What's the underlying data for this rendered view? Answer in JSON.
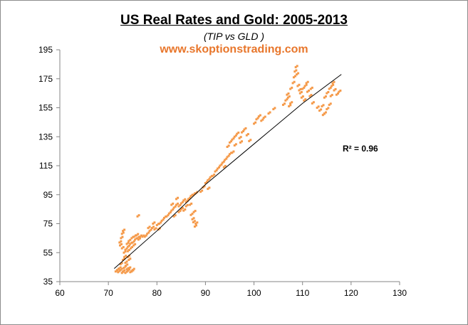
{
  "chart_data": {
    "type": "scatter",
    "title": "US Real Rates and Gold: 2005-2013",
    "subtitle": "(TIP vs GLD )",
    "watermark": "www.skoptionstrading.com",
    "xlabel": "",
    "ylabel": "",
    "xlim": [
      60,
      130
    ],
    "ylim": [
      35,
      195
    ],
    "xticks": [
      "60",
      "70",
      "80",
      "90",
      "100",
      "110",
      "120",
      "130"
    ],
    "yticks": [
      "35",
      "55",
      "75",
      "95",
      "115",
      "135",
      "155",
      "175",
      "195"
    ],
    "grid": false,
    "marker_color": "#f59a4a",
    "trendline": {
      "label": "R² = 0.96",
      "points": [
        [
          71.2,
          44
        ],
        [
          80,
          70
        ],
        [
          90,
          102
        ],
        [
          100,
          130
        ],
        [
          110,
          158
        ],
        [
          118,
          178
        ]
      ]
    },
    "points": [
      [
        71.5,
        42
      ],
      [
        72,
        41.5
      ],
      [
        72.5,
        43
      ],
      [
        73,
        42
      ],
      [
        73.5,
        41
      ],
      [
        74,
        42.5
      ],
      [
        74.5,
        41.5
      ],
      [
        75,
        43
      ],
      [
        72.2,
        44
      ],
      [
        73.2,
        44.5
      ],
      [
        74.2,
        44
      ],
      [
        71.8,
        43
      ],
      [
        72.8,
        41
      ],
      [
        73.8,
        43.5
      ],
      [
        74.8,
        42
      ],
      [
        72.5,
        47
      ],
      [
        73,
        50
      ],
      [
        73.5,
        48
      ],
      [
        74,
        52
      ],
      [
        73.2,
        55
      ],
      [
        72.8,
        58
      ],
      [
        72.3,
        62
      ],
      [
        72.6,
        65
      ],
      [
        72.8,
        68
      ],
      [
        73,
        70
      ],
      [
        72.4,
        60
      ],
      [
        73.3,
        52
      ],
      [
        74.2,
        50
      ],
      [
        73.6,
        46
      ],
      [
        73.5,
        57
      ],
      [
        74,
        59
      ],
      [
        74.5,
        61
      ],
      [
        75,
        62
      ],
      [
        75.5,
        64
      ],
      [
        76,
        65
      ],
      [
        76.5,
        66
      ],
      [
        77,
        66
      ],
      [
        74.2,
        63
      ],
      [
        74.8,
        65
      ],
      [
        75.3,
        66
      ],
      [
        75.8,
        67
      ],
      [
        76.2,
        64
      ],
      [
        74,
        56
      ],
      [
        74.6,
        58
      ],
      [
        75.2,
        60
      ],
      [
        73.8,
        61
      ],
      [
        77.5,
        66
      ],
      [
        78,
        68
      ],
      [
        78.5,
        70
      ],
      [
        79,
        72
      ],
      [
        79.5,
        71
      ],
      [
        80,
        74
      ],
      [
        80.5,
        75
      ],
      [
        81,
        77
      ],
      [
        79.2,
        75
      ],
      [
        78.2,
        72
      ],
      [
        80.3,
        71
      ],
      [
        81.5,
        79
      ],
      [
        82,
        80
      ],
      [
        76,
        80
      ],
      [
        82.5,
        82
      ],
      [
        83,
        84
      ],
      [
        83.5,
        86
      ],
      [
        84,
        88
      ],
      [
        84.5,
        87
      ],
      [
        85,
        89
      ],
      [
        85.5,
        91
      ],
      [
        86,
        90
      ],
      [
        86.5,
        92
      ],
      [
        87,
        94
      ],
      [
        87.5,
        95
      ],
      [
        88,
        96
      ],
      [
        83,
        88
      ],
      [
        84,
        92
      ],
      [
        85,
        85
      ],
      [
        86,
        87
      ],
      [
        85.5,
        84
      ],
      [
        84.5,
        83
      ],
      [
        86.8,
        88
      ],
      [
        83.5,
        80
      ],
      [
        87,
        81
      ],
      [
        87.3,
        78
      ],
      [
        87.5,
        76
      ],
      [
        87.8,
        73
      ],
      [
        88,
        75
      ],
      [
        87.6,
        83
      ],
      [
        89,
        97
      ],
      [
        89.5,
        100
      ],
      [
        90,
        103
      ],
      [
        90.5,
        105
      ],
      [
        91,
        107
      ],
      [
        91.5,
        108
      ],
      [
        92,
        111
      ],
      [
        90.5,
        99
      ],
      [
        92.5,
        113
      ],
      [
        93,
        115
      ],
      [
        93.5,
        117
      ],
      [
        94,
        119
      ],
      [
        94.5,
        121
      ],
      [
        95,
        123
      ],
      [
        95.5,
        124
      ],
      [
        93.8,
        114
      ],
      [
        94.5,
        128
      ],
      [
        95,
        131
      ],
      [
        95.5,
        133
      ],
      [
        96,
        135
      ],
      [
        96.5,
        137
      ],
      [
        97,
        134
      ],
      [
        97.5,
        138
      ],
      [
        98,
        140
      ],
      [
        98.5,
        136
      ],
      [
        99,
        132
      ],
      [
        96,
        129
      ],
      [
        97.2,
        131
      ],
      [
        100,
        144
      ],
      [
        100.5,
        147
      ],
      [
        101,
        149
      ],
      [
        101.5,
        146
      ],
      [
        102,
        148
      ],
      [
        103,
        151
      ],
      [
        104,
        154
      ],
      [
        106,
        157
      ],
      [
        106.5,
        160
      ],
      [
        107,
        162
      ],
      [
        107.5,
        158
      ],
      [
        106.8,
        164
      ],
      [
        107.2,
        156
      ],
      [
        107.5,
        168
      ],
      [
        108,
        172
      ],
      [
        108.2,
        176
      ],
      [
        108.4,
        180
      ],
      [
        108.6,
        183
      ],
      [
        108.8,
        178
      ],
      [
        109,
        170
      ],
      [
        109.3,
        167
      ],
      [
        109.5,
        165
      ],
      [
        110,
        168
      ],
      [
        110.5,
        170
      ],
      [
        111,
        166
      ],
      [
        111.5,
        163
      ],
      [
        110.3,
        160
      ],
      [
        109.8,
        162
      ],
      [
        112,
        158
      ],
      [
        110.8,
        172
      ],
      [
        111.7,
        168
      ],
      [
        113,
        155
      ],
      [
        113.5,
        153
      ],
      [
        114,
        156
      ],
      [
        114.5,
        151
      ],
      [
        115,
        154
      ],
      [
        115.5,
        157
      ],
      [
        114.2,
        150
      ],
      [
        114.5,
        162
      ],
      [
        115,
        165
      ],
      [
        115.5,
        168
      ],
      [
        116,
        170
      ],
      [
        116.5,
        167
      ],
      [
        117,
        164
      ],
      [
        117.5,
        166
      ],
      [
        116.2,
        172
      ],
      [
        115.8,
        163
      ]
    ]
  }
}
